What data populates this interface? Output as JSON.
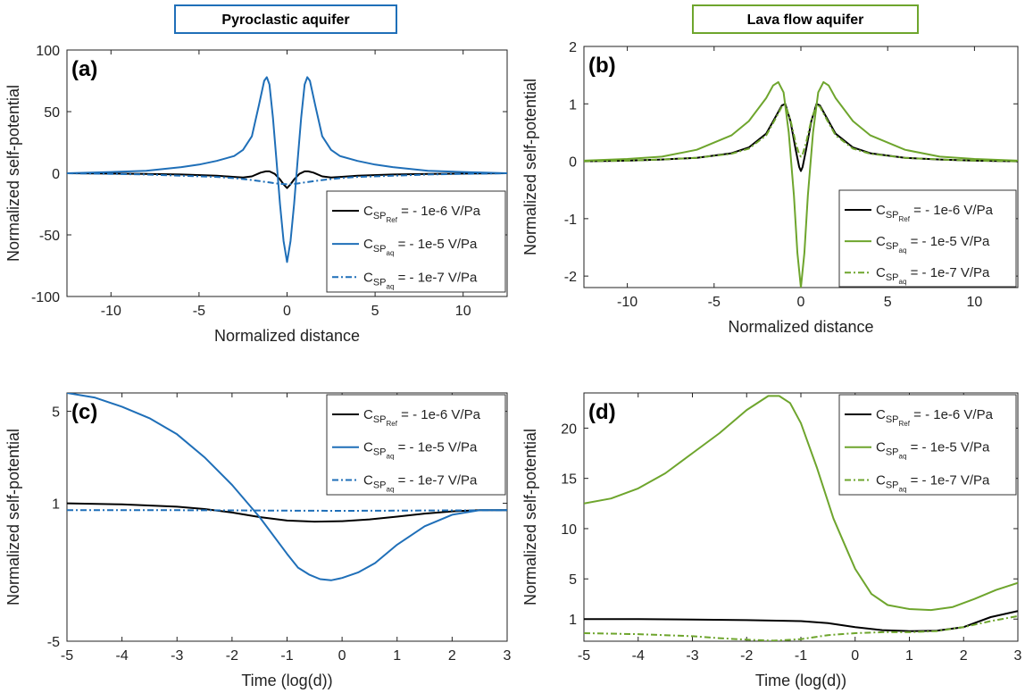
{
  "group_headers": [
    {
      "text": "Pyroclastic aquifer",
      "color": "#1f6fb8"
    },
    {
      "text": "Lava flow aquifer",
      "color": "#6ea52d"
    }
  ],
  "colors": {
    "ref": "#000000",
    "pyro": "#1f6fb8",
    "lava": "#6ea52d"
  },
  "chart_data": [
    {
      "type": "line",
      "panel_label": "(a)",
      "xlabel": "Normalized distance",
      "ylabel": "Normalized self-potential",
      "xlim": [
        -12.5,
        12.5
      ],
      "ylim": [
        -100,
        100
      ],
      "xticks": [
        -10,
        -5,
        0,
        5,
        10
      ],
      "yticks": [
        -100,
        -50,
        0,
        50,
        100
      ],
      "legend_position": "bottom-right",
      "series": [
        {
          "name": "Ref",
          "value_text": "= - 1e-6 V/Pa",
          "color": "#000000",
          "dash": "solid",
          "x": [
            -12.5,
            -10,
            -8,
            -6,
            -4,
            -3,
            -2.5,
            -2,
            -1.5,
            -1.2,
            -1,
            -0.7,
            -0.4,
            -0.2,
            0,
            0.2,
            0.4,
            0.7,
            1,
            1.2,
            1.5,
            2,
            2.5,
            3,
            4,
            6,
            8,
            10,
            12.5
          ],
          "y": [
            0,
            -0.3,
            -0.6,
            -1,
            -2,
            -3,
            -3.5,
            -2.5,
            0.5,
            1.5,
            1.5,
            -0.5,
            -5,
            -9,
            -12,
            -9,
            -5,
            -0.5,
            1.5,
            1.5,
            0.5,
            -2.5,
            -3.5,
            -3,
            -2,
            -1,
            -0.6,
            -0.3,
            0
          ]
        },
        {
          "name": "aq",
          "value_text": "= - 1e-5 V/Pa",
          "color": "#1f6fb8",
          "dash": "solid",
          "x": [
            -12.5,
            -10,
            -8,
            -6,
            -5,
            -4,
            -3,
            -2.5,
            -2,
            -1.6,
            -1.3,
            -1.15,
            -1,
            -0.8,
            -0.6,
            -0.4,
            -0.2,
            0,
            0.2,
            0.4,
            0.6,
            0.8,
            1,
            1.15,
            1.3,
            1.6,
            2,
            2.5,
            3,
            4,
            5,
            6,
            8,
            10,
            12.5
          ],
          "y": [
            0,
            1,
            2,
            5,
            7,
            10,
            14,
            19,
            30,
            55,
            75,
            78,
            72,
            45,
            10,
            -25,
            -55,
            -72,
            -55,
            -25,
            10,
            45,
            72,
            78,
            75,
            55,
            30,
            19,
            14,
            10,
            7,
            5,
            2,
            1,
            0
          ]
        },
        {
          "name": "aq",
          "value_text": "= - 1e-7 V/Pa",
          "color": "#1f6fb8",
          "dash": "dashdot",
          "x": [
            -12.5,
            -10,
            -8,
            -6,
            -4,
            -3,
            -2,
            -1,
            -0.5,
            0,
            0.5,
            1,
            2,
            3,
            4,
            6,
            8,
            10,
            12.5
          ],
          "y": [
            0,
            -0.5,
            -1,
            -2,
            -3,
            -4,
            -5.5,
            -7.5,
            -8.5,
            -9,
            -8.5,
            -7.5,
            -5.5,
            -4,
            -3,
            -2,
            -1,
            -0.5,
            0
          ]
        }
      ]
    },
    {
      "type": "line",
      "panel_label": "(b)",
      "xlabel": "Normalized distance",
      "ylabel": "Normalized self-potential",
      "xlim": [
        -12.5,
        12.5
      ],
      "ylim": [
        -2.2,
        2
      ],
      "xticks": [
        -10,
        -5,
        0,
        5,
        10
      ],
      "yticks": [
        -2,
        -1,
        0,
        1,
        2
      ],
      "legend_position": "bottom-right",
      "series": [
        {
          "name": "Ref",
          "value_text": "= - 1e-6 V/Pa",
          "color": "#000000",
          "dash": "solid",
          "x": [
            -12.5,
            -10,
            -8,
            -6,
            -4,
            -3,
            -2,
            -1.5,
            -1.1,
            -0.9,
            -0.6,
            -0.3,
            -0.1,
            0,
            0.1,
            0.3,
            0.6,
            0.9,
            1.1,
            1.5,
            2,
            3,
            4,
            6,
            8,
            10,
            12.5
          ],
          "y": [
            0,
            0.01,
            0.03,
            0.06,
            0.14,
            0.24,
            0.48,
            0.75,
            0.97,
            1,
            0.7,
            0.2,
            -0.1,
            -0.17,
            -0.1,
            0.2,
            0.7,
            1,
            0.97,
            0.75,
            0.48,
            0.24,
            0.14,
            0.06,
            0.03,
            0.01,
            0
          ]
        },
        {
          "name": "aq",
          "value_text": "= - 1e-5 V/Pa",
          "color": "#6ea52d",
          "dash": "solid",
          "x": [
            -12.5,
            -10,
            -8,
            -6,
            -4,
            -3,
            -2,
            -1.6,
            -1.3,
            -1,
            -0.7,
            -0.4,
            -0.2,
            0,
            0.2,
            0.4,
            0.7,
            1,
            1.3,
            1.6,
            2,
            3,
            4,
            6,
            8,
            10,
            12.5
          ],
          "y": [
            0.01,
            0.04,
            0.08,
            0.2,
            0.45,
            0.7,
            1.1,
            1.32,
            1.38,
            1.2,
            0.5,
            -0.6,
            -1.6,
            -2.2,
            -1.6,
            -0.6,
            0.5,
            1.2,
            1.38,
            1.32,
            1.1,
            0.7,
            0.45,
            0.2,
            0.08,
            0.04,
            0.01
          ]
        },
        {
          "name": "aq",
          "value_text": "= - 1e-7 V/Pa",
          "color": "#6ea52d",
          "dash": "dashdot",
          "x": [
            -12.5,
            -10,
            -8,
            -6,
            -4,
            -3,
            -2,
            -1.5,
            -1.1,
            -0.9,
            -0.6,
            -0.3,
            -0.1,
            0,
            0.1,
            0.3,
            0.6,
            0.9,
            1.1,
            1.5,
            2,
            3,
            4,
            6,
            8,
            10,
            12.5
          ],
          "y": [
            0,
            0.01,
            0.03,
            0.06,
            0.13,
            0.22,
            0.45,
            0.72,
            0.95,
            0.98,
            0.72,
            0.32,
            0.12,
            0.08,
            0.12,
            0.32,
            0.72,
            0.98,
            0.95,
            0.72,
            0.45,
            0.22,
            0.13,
            0.06,
            0.03,
            0.01,
            0
          ]
        }
      ]
    },
    {
      "type": "line",
      "panel_label": "(c)",
      "xlabel": "Time (log(d))",
      "ylabel": "Normalized self-potential",
      "xlim": [
        -5,
        3
      ],
      "ylim": [
        -5,
        5.8
      ],
      "xticks": [
        -5,
        -4,
        -3,
        -2,
        -1,
        0,
        1,
        2,
        3
      ],
      "yticks": [
        -5,
        1,
        5
      ],
      "legend_position": "top-right",
      "series": [
        {
          "name": "Ref",
          "value_text": "= - 1e-6 V/Pa",
          "color": "#000000",
          "dash": "solid",
          "x": [
            -5,
            -4,
            -3,
            -2.5,
            -2,
            -1.5,
            -1,
            -0.5,
            0,
            0.5,
            1,
            1.5,
            2,
            2.5,
            3
          ],
          "y": [
            1,
            0.95,
            0.85,
            0.75,
            0.6,
            0.4,
            0.25,
            0.2,
            0.22,
            0.3,
            0.42,
            0.55,
            0.65,
            0.7,
            0.7
          ]
        },
        {
          "name": "aq",
          "value_text": "= - 1e-5 V/Pa",
          "color": "#1f6fb8",
          "dash": "solid",
          "x": [
            -5,
            -4.5,
            -4,
            -3.5,
            -3,
            -2.5,
            -2,
            -1.5,
            -1,
            -0.8,
            -0.6,
            -0.4,
            -0.2,
            0,
            0.3,
            0.6,
            1,
            1.5,
            2,
            2.5,
            3
          ],
          "y": [
            5.8,
            5.6,
            5.2,
            4.7,
            4,
            3,
            1.8,
            0.4,
            -1.2,
            -1.8,
            -2.1,
            -2.3,
            -2.35,
            -2.25,
            -2,
            -1.6,
            -0.8,
            0,
            0.5,
            0.7,
            0.7
          ]
        },
        {
          "name": "aq",
          "value_text": "= - 1e-7 V/Pa",
          "color": "#1f6fb8",
          "dash": "dashdot",
          "x": [
            -5,
            -4,
            -3,
            -2,
            -1,
            0,
            1,
            2,
            3
          ],
          "y": [
            0.7,
            0.7,
            0.7,
            0.69,
            0.68,
            0.67,
            0.68,
            0.69,
            0.7
          ]
        }
      ]
    },
    {
      "type": "line",
      "panel_label": "(d)",
      "xlabel": "Time (log(d))",
      "ylabel": "Normalized self-potential",
      "xlim": [
        -5,
        3
      ],
      "ylim": [
        -1.2,
        23.5
      ],
      "xticks": [
        -5,
        -4,
        -3,
        -2,
        -1,
        0,
        1,
        2,
        3
      ],
      "yticks": [
        1,
        5,
        10,
        15,
        20
      ],
      "legend_position": "top-right",
      "series": [
        {
          "name": "Ref",
          "value_text": "= - 1e-6 V/Pa",
          "color": "#000000",
          "dash": "solid",
          "x": [
            -5,
            -4,
            -3,
            -2,
            -1,
            -0.5,
            0,
            0.5,
            1,
            1.5,
            2,
            2.5,
            3
          ],
          "y": [
            1,
            1,
            0.95,
            0.9,
            0.8,
            0.6,
            0.2,
            -0.1,
            -0.2,
            -0.15,
            0.2,
            1.2,
            1.8
          ]
        },
        {
          "name": "aq",
          "value_text": "= - 1e-5 V/Pa",
          "color": "#6ea52d",
          "dash": "solid",
          "x": [
            -5,
            -4.5,
            -4,
            -3.5,
            -3,
            -2.5,
            -2,
            -1.6,
            -1.4,
            -1.2,
            -1,
            -0.7,
            -0.4,
            -0.2,
            0,
            0.3,
            0.6,
            1,
            1.4,
            1.8,
            2.2,
            2.6,
            3
          ],
          "y": [
            12.5,
            13,
            14,
            15.5,
            17.5,
            19.5,
            21.8,
            23.2,
            23.2,
            22.5,
            20.5,
            16,
            11,
            8.5,
            6,
            3.5,
            2.4,
            2,
            1.9,
            2.2,
            3,
            3.9,
            4.6
          ]
        },
        {
          "name": "aq",
          "value_text": "= - 1e-7 V/Pa",
          "color": "#6ea52d",
          "dash": "dashdot",
          "x": [
            -5,
            -4,
            -3,
            -2.5,
            -2,
            -1.5,
            -1,
            -0.5,
            0,
            0.5,
            1,
            1.5,
            2,
            2.5,
            3
          ],
          "y": [
            -0.4,
            -0.5,
            -0.7,
            -0.9,
            -1.05,
            -1.15,
            -1,
            -0.6,
            -0.4,
            -0.3,
            -0.3,
            -0.2,
            0.2,
            0.8,
            1.3
          ]
        }
      ]
    }
  ]
}
